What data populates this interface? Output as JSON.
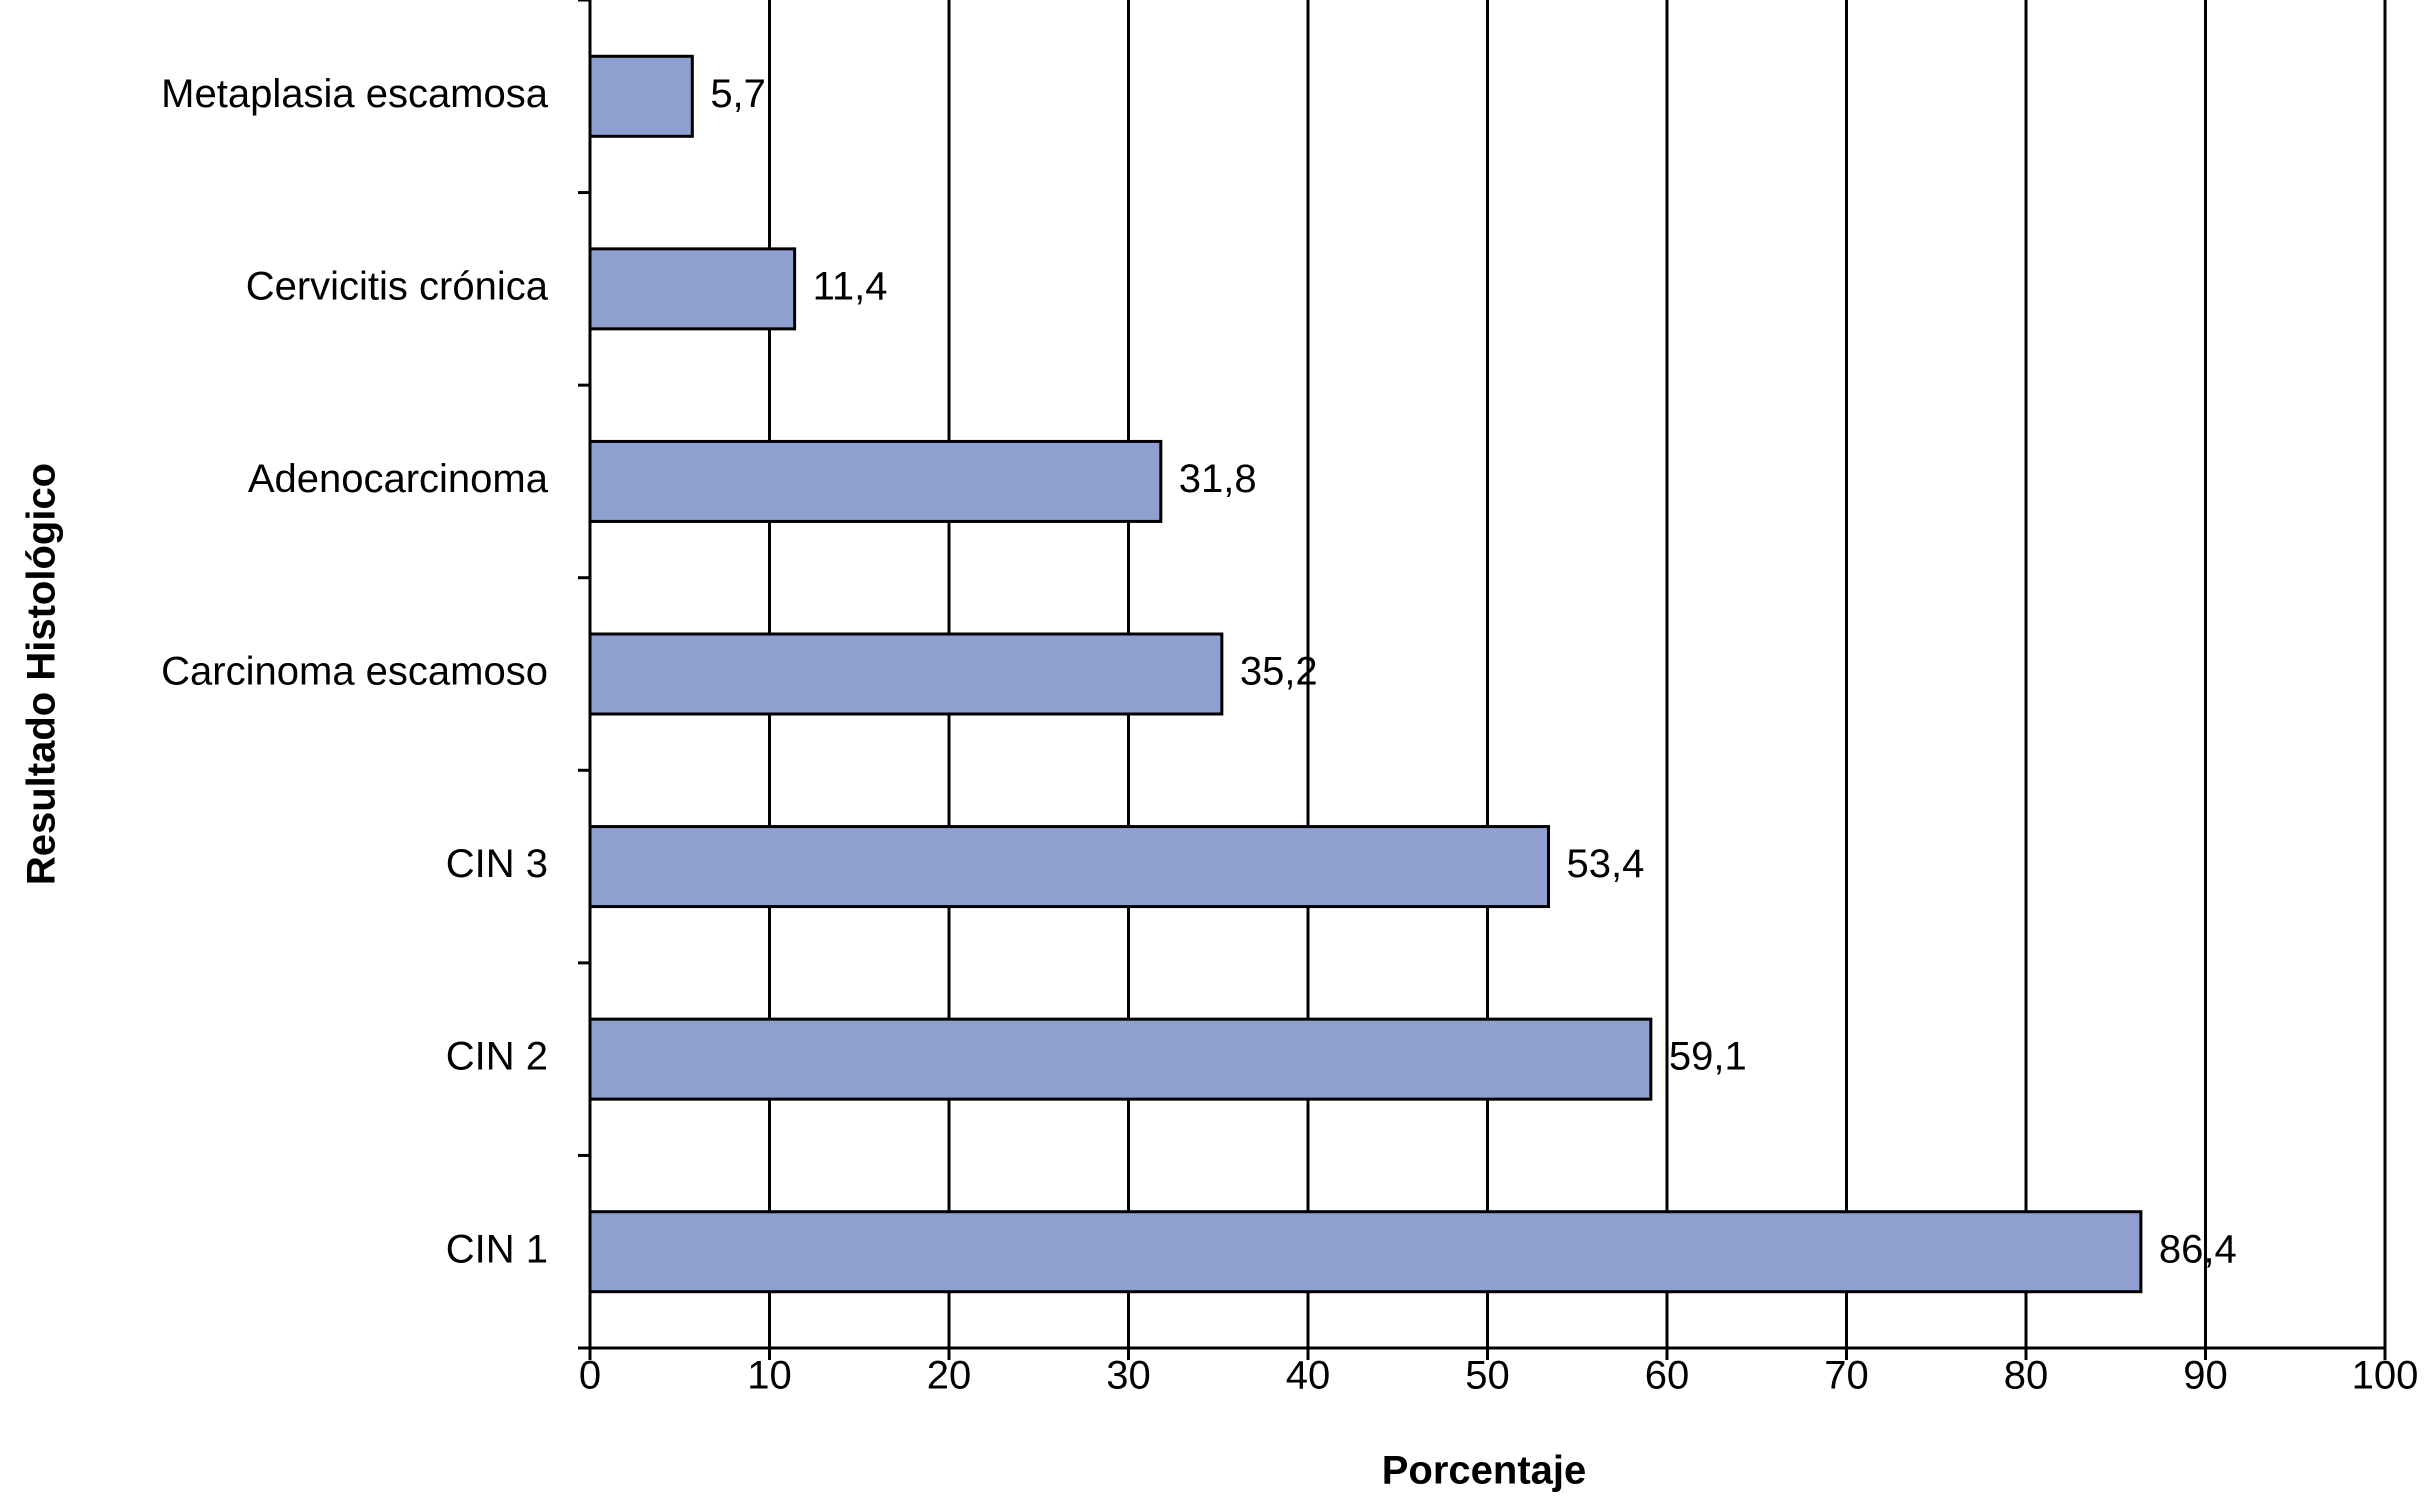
{
  "chart_data": {
    "type": "bar",
    "orientation": "horizontal",
    "x_label": "Porcentaje",
    "y_label": "Resultado Histológico",
    "categories": [
      "Metaplasia escamosa",
      "Cervicitis crónica",
      "Adenocarcinoma",
      "Carcinoma escamoso",
      "CIN 3",
      "CIN 2",
      "CIN 1"
    ],
    "values": [
      5.7,
      11.4,
      31.8,
      35.2,
      53.4,
      59.1,
      86.4
    ],
    "value_labels": [
      "5,7",
      "11,4",
      "31,8",
      "35,2",
      "53,4",
      "59,1",
      "86,4"
    ],
    "color": "#8f9fd0",
    "xlim": [
      0,
      100
    ],
    "xticks": [
      0,
      10,
      20,
      30,
      40,
      50,
      60,
      70,
      80,
      90,
      100
    ],
    "grid": true
  }
}
